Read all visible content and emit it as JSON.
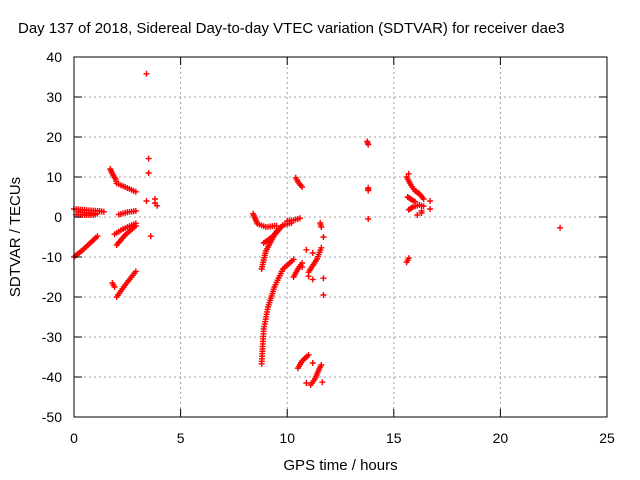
{
  "chart_data": {
    "type": "scatter",
    "title": "Day 137 of 2018, Sidereal Day-to-day VTEC variation (SDTVAR) for receiver dae3",
    "xlabel": "GPS time / hours",
    "ylabel": "SDTVAR / TECUs",
    "xlim": [
      0,
      25
    ],
    "ylim": [
      -50,
      40
    ],
    "xticks": [
      0,
      5,
      10,
      15,
      20,
      25
    ],
    "yticks": [
      -50,
      -40,
      -30,
      -20,
      -10,
      0,
      10,
      20,
      30,
      40
    ],
    "grid": true,
    "marker": "+",
    "color": "#ff0000",
    "series": [
      {
        "segments": [
          [
            [
              0.0,
              2.0
            ],
            [
              0.6,
              1.7
            ],
            [
              1.2,
              1.5
            ],
            [
              1.4,
              1.3
            ]
          ],
          [
            [
              0.0,
              -10.0
            ],
            [
              0.4,
              -8.3
            ],
            [
              0.8,
              -6.3
            ],
            [
              1.1,
              -4.8
            ]
          ],
          [
            [
              0.1,
              0.6
            ],
            [
              0.5,
              0.5
            ],
            [
              0.9,
              0.5
            ],
            [
              1.1,
              0.8
            ]
          ],
          [
            [
              0.2,
              1.3
            ],
            [
              0.6,
              1.0
            ],
            [
              1.0,
              0.9
            ]
          ],
          [
            [
              1.7,
              12.0
            ],
            [
              1.8,
              10.8
            ],
            [
              1.95,
              9.5
            ],
            [
              2.0,
              8.4
            ],
            [
              2.4,
              7.5
            ],
            [
              2.9,
              6.3
            ]
          ],
          [
            [
              2.1,
              0.6
            ],
            [
              2.5,
              1.2
            ],
            [
              2.9,
              1.5
            ]
          ],
          [
            [
              2.0,
              -7.0
            ],
            [
              2.4,
              -4.5
            ],
            [
              2.9,
              -2.2
            ]
          ],
          [
            [
              1.9,
              -4.3
            ],
            [
              2.3,
              -3.0
            ],
            [
              2.9,
              -1.6
            ]
          ],
          [
            [
              2.0,
              -20.0
            ],
            [
              2.4,
              -17.0
            ],
            [
              2.9,
              -13.6
            ]
          ],
          [
            [
              1.8,
              -16.5
            ],
            [
              1.9,
              -17.5
            ]
          ],
          [
            [
              8.4,
              0.8
            ],
            [
              8.5,
              -0.4
            ],
            [
              8.6,
              -1.7
            ],
            [
              9.0,
              -2.5
            ],
            [
              9.5,
              -2.2
            ]
          ],
          [
            [
              8.8,
              -36.7
            ],
            [
              8.9,
              -28.0
            ],
            [
              9.1,
              -22.5
            ],
            [
              9.4,
              -17.5
            ],
            [
              9.8,
              -13.0
            ],
            [
              10.3,
              -10.6
            ]
          ],
          [
            [
              8.8,
              -13.0
            ],
            [
              9.0,
              -8.5
            ],
            [
              9.4,
              -4.5
            ],
            [
              9.8,
              -2.0
            ],
            [
              10.2,
              -1.5
            ]
          ],
          [
            [
              8.9,
              -6.5
            ],
            [
              9.3,
              -5.0
            ],
            [
              9.6,
              -3.0
            ]
          ],
          [
            [
              10.0,
              -1.0
            ],
            [
              10.3,
              -0.8
            ],
            [
              10.6,
              -0.3
            ]
          ],
          [
            [
              10.3,
              -15.0
            ],
            [
              10.5,
              -13.0
            ],
            [
              10.7,
              -11.5
            ]
          ],
          [
            [
              10.4,
              9.8
            ],
            [
              10.5,
              8.8
            ],
            [
              10.7,
              7.5
            ]
          ],
          [
            [
              10.5,
              -37.8
            ],
            [
              10.7,
              -36.0
            ],
            [
              11.0,
              -34.5
            ]
          ],
          [
            [
              11.1,
              -42.0
            ],
            [
              11.3,
              -40.5
            ],
            [
              11.5,
              -38.0
            ],
            [
              11.6,
              -37.0
            ]
          ],
          [
            [
              11.0,
              -13.8
            ],
            [
              11.4,
              -10.5
            ],
            [
              11.6,
              -7.7
            ]
          ],
          [
            [
              11.55,
              -1.5
            ],
            [
              11.6,
              -2.5
            ]
          ],
          [
            [
              13.75,
              18.9
            ],
            [
              13.8,
              18.1
            ]
          ],
          [
            [
              13.8,
              7.3
            ],
            [
              13.8,
              6.6
            ]
          ],
          [
            [
              15.6,
              10.0
            ],
            [
              15.8,
              8.0
            ],
            [
              16.0,
              6.5
            ],
            [
              16.2,
              5.8
            ],
            [
              16.4,
              4.5
            ]
          ],
          [
            [
              15.7,
              1.8
            ],
            [
              15.9,
              2.5
            ],
            [
              16.2,
              3.0
            ],
            [
              16.4,
              2.7
            ]
          ],
          [
            [
              15.65,
              5.0
            ],
            [
              15.85,
              4.3
            ],
            [
              16.0,
              3.8
            ]
          ],
          [
            [
              15.6,
              -11.3
            ],
            [
              15.7,
              -10.3
            ]
          ]
        ],
        "points": [
          [
            3.4,
            35.8
          ],
          [
            3.5,
            14.6
          ],
          [
            3.5,
            11.0
          ],
          [
            3.4,
            4.0
          ],
          [
            3.6,
            -4.8
          ],
          [
            3.8,
            4.5
          ],
          [
            3.8,
            3.5
          ],
          [
            3.9,
            2.8
          ],
          [
            10.7,
            -12.5
          ],
          [
            10.9,
            -8.2
          ],
          [
            11.0,
            -14.8
          ],
          [
            11.2,
            -9.0
          ],
          [
            11.2,
            -36.5
          ],
          [
            11.2,
            -15.6
          ],
          [
            10.9,
            -41.5
          ],
          [
            11.7,
            -5.0
          ],
          [
            11.7,
            -15.3
          ],
          [
            11.7,
            -19.5
          ],
          [
            11.65,
            -41.3
          ],
          [
            13.8,
            -0.5
          ],
          [
            15.7,
            10.8
          ],
          [
            16.1,
            0.5
          ],
          [
            16.3,
            1.0
          ],
          [
            16.3,
            1.5
          ],
          [
            16.7,
            4.0
          ],
          [
            16.7,
            2.0
          ],
          [
            22.8,
            -2.7
          ]
        ]
      }
    ]
  }
}
